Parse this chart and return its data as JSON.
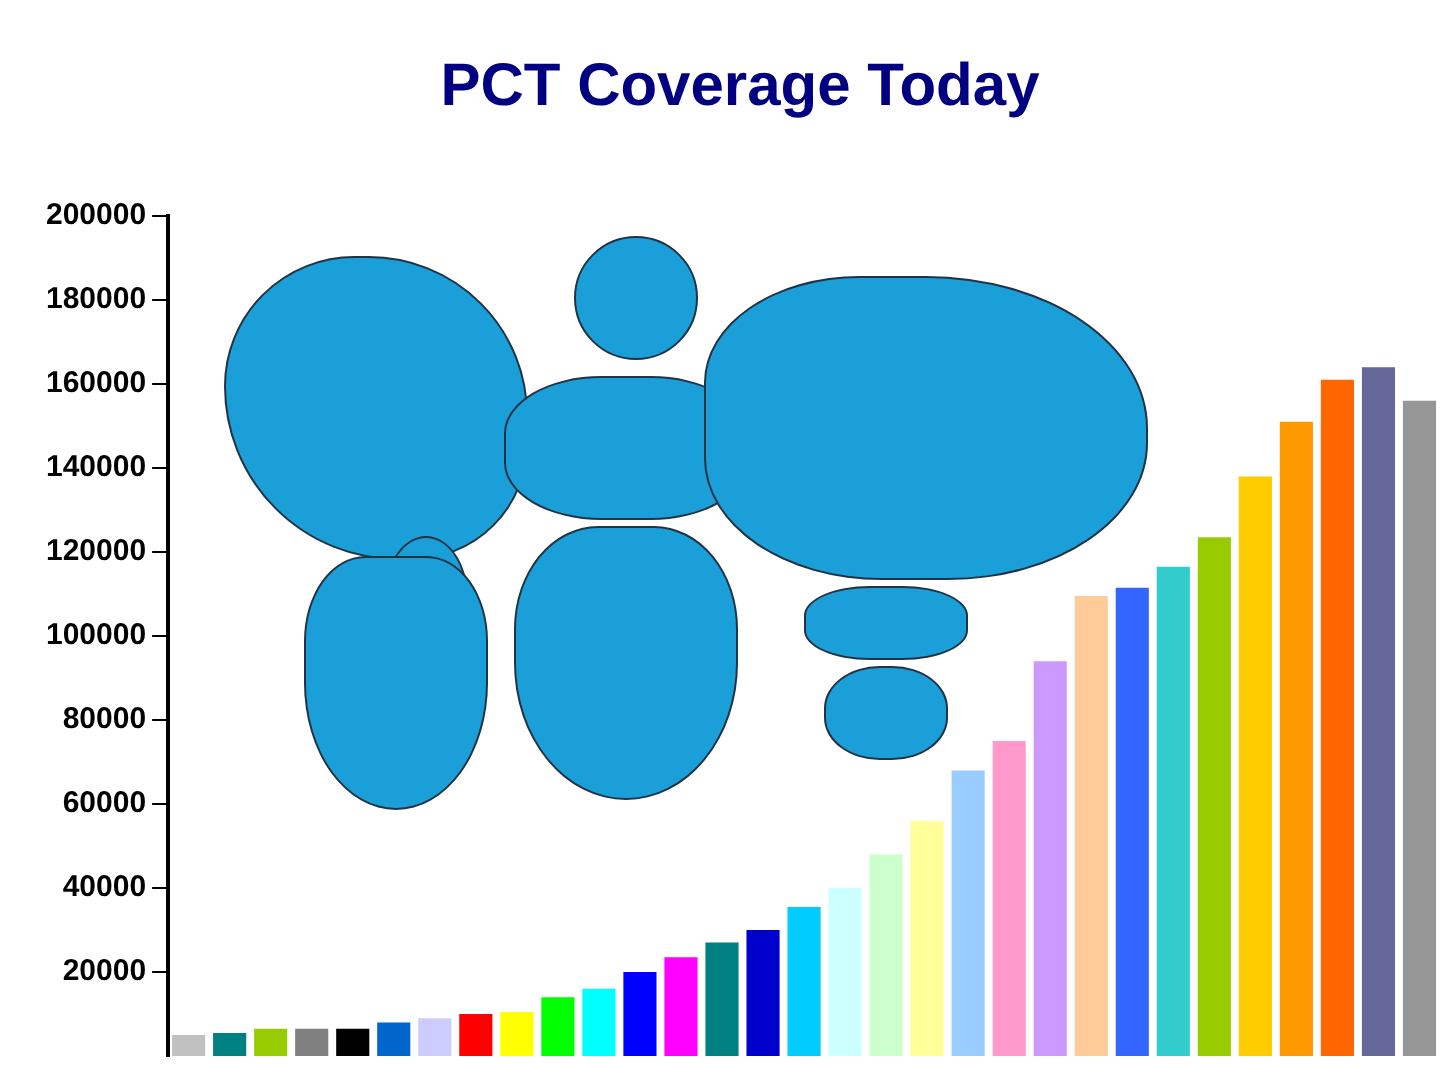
{
  "chart_data": {
    "type": "bar",
    "title": "PCT Coverage Today",
    "categories": [
      null,
      null,
      null,
      null,
      null,
      null,
      null,
      null,
      null,
      null,
      null,
      null,
      null,
      null,
      null,
      null,
      null,
      null,
      null,
      null,
      null,
      null,
      null,
      null,
      null,
      null,
      null,
      null,
      null,
      null,
      null
    ],
    "values": [
      5000,
      5500,
      6500,
      6500,
      6500,
      8000,
      9000,
      10000,
      10500,
      14000,
      16000,
      20000,
      23500,
      27000,
      30000,
      35500,
      40000,
      48000,
      56000,
      68000,
      75000,
      94000,
      109500,
      111500,
      116500,
      123500,
      138000,
      151000,
      161000,
      164000,
      156000
    ],
    "colors": [
      "#c0c0c0",
      "#008080",
      "#99cc00",
      "#808080",
      "#000000",
      "#0066cc",
      "#ccccff",
      "#ff0000",
      "#ffff00",
      "#00ff00",
      "#00ffff",
      "#0000ff",
      "#ff00ff",
      "#008080",
      "#0000cc",
      "#00ccff",
      "#ccffff",
      "#ccffcc",
      "#ffff99",
      "#99ccff",
      "#ff99cc",
      "#cc99ff",
      "#ffcc99",
      "#3366ff",
      "#33cccc",
      "#99cc00",
      "#ffcc00",
      "#ff9900",
      "#ff6600",
      "#666699",
      "#969696"
    ],
    "ylim": [
      0,
      200000
    ],
    "yticks": [
      20000,
      40000,
      60000,
      80000,
      100000,
      120000,
      140000,
      160000,
      180000,
      200000
    ],
    "grid": false,
    "legend": false
  }
}
